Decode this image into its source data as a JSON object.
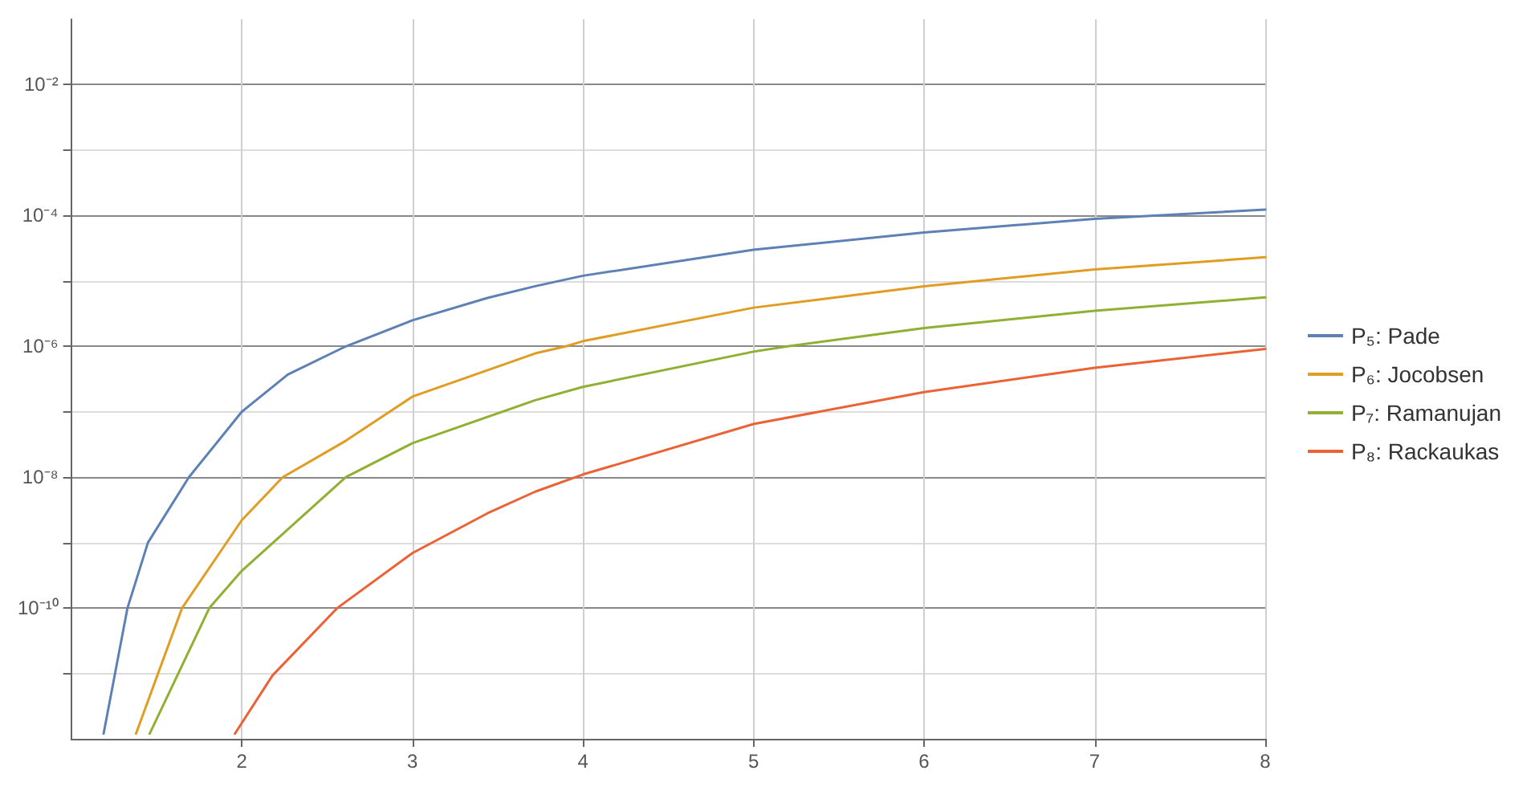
{
  "chart_data": {
    "type": "line",
    "log": "y",
    "grid": true,
    "legend": "right",
    "marker": "none",
    "line_style": "solid",
    "xlim": [
      1,
      8
    ],
    "xticks": [
      2,
      3,
      4,
      5,
      6,
      7,
      8
    ],
    "ylim": [
      1e-12,
      0.1
    ],
    "yticks": [
      {
        "value": 1e-11,
        "label": null
      },
      {
        "value": 1e-10,
        "label": "10⁻¹⁰"
      },
      {
        "value": 1e-09,
        "label": null
      },
      {
        "value": 1e-08,
        "label": "10⁻⁸"
      },
      {
        "value": 1e-07,
        "label": null
      },
      {
        "value": 1e-06,
        "label": "10⁻⁶"
      },
      {
        "value": 1e-05,
        "label": null
      },
      {
        "value": 0.0001,
        "label": "10⁻⁴"
      },
      {
        "value": 0.001,
        "label": null
      },
      {
        "value": 0.01,
        "label": "10⁻²"
      }
    ],
    "series": [
      {
        "name": "P₅: Pade",
        "color": "#5e81b5",
        "x": [
          1.19,
          1.33,
          1.45,
          1.69,
          2.0,
          2.27,
          2.61,
          3.0,
          3.44,
          3.72,
          4.0,
          5.0,
          6.0,
          7.0,
          8.0
        ],
        "values": [
          1.2e-12,
          1e-10,
          1e-09,
          1e-08,
          1e-07,
          3.7e-07,
          1e-06,
          2.5e-06,
          5.5e-06,
          8.3e-06,
          1.2e-05,
          3e-05,
          5.5e-05,
          8.9e-05,
          0.000123
        ]
      },
      {
        "name": "P₆: Jocobsen",
        "color": "#e19c24",
        "x": [
          1.38,
          1.65,
          2.0,
          2.24,
          2.61,
          3.0,
          3.72,
          3.9,
          4.0,
          5.0,
          6.0,
          7.0,
          8.0
        ],
        "values": [
          1.2e-12,
          1e-10,
          2.2e-09,
          1e-08,
          3.6e-08,
          1.7e-07,
          7.8e-07,
          1e-06,
          1.2e-06,
          3.9e-06,
          8.3e-06,
          1.5e-05,
          2.3e-05
        ]
      },
      {
        "name": "P₇: Ramanujan",
        "color": "#8fb032",
        "x": [
          1.46,
          1.81,
          2.0,
          2.61,
          3.0,
          3.72,
          4.0,
          5.0,
          5.2,
          6.0,
          7.0,
          8.0
        ],
        "values": [
          1.2e-12,
          1e-10,
          3.7e-10,
          1e-08,
          3.3e-08,
          1.5e-07,
          2.4e-07,
          8.3e-07,
          1e-06,
          1.9e-06,
          3.5e-06,
          5.6e-06
        ]
      },
      {
        "name": "P₈: Rackaukas",
        "color": "#eb6235",
        "x": [
          1.96,
          2.18,
          2.56,
          3.0,
          3.44,
          3.72,
          4.0,
          5.0,
          6.0,
          7.0,
          8.0
        ],
        "values": [
          1.2e-12,
          9.3e-12,
          1e-10,
          6.9e-10,
          2.8e-09,
          6e-09,
          1.1e-08,
          6.5e-08,
          2e-07,
          4.7e-07,
          9.1e-07
        ]
      }
    ]
  }
}
